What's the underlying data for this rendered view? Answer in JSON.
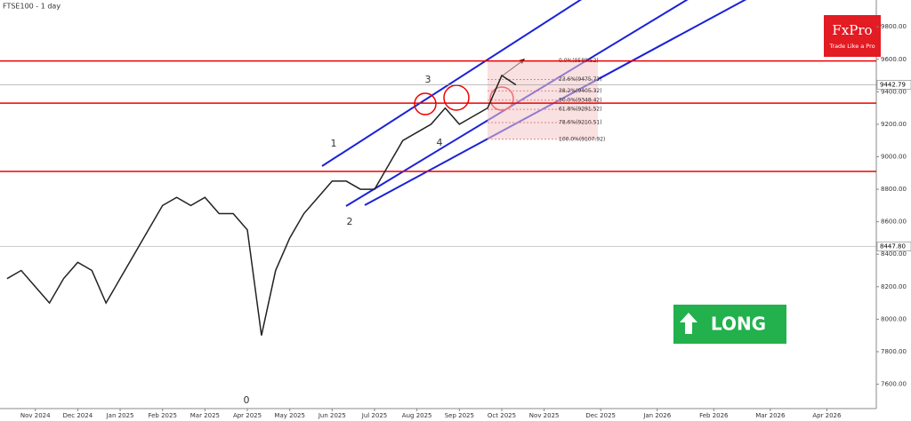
{
  "chart_data": {
    "type": "line",
    "title": "FTSE100 - 1 day",
    "categories": [
      null,
      null,
      "Nov 2024",
      null,
      null,
      "Dec 2024",
      null,
      null,
      "Jan 2025",
      null,
      null,
      "Feb 2025",
      null,
      null,
      "Mar 2025",
      null,
      null,
      "Apr 2025",
      null,
      null,
      "May 2025",
      null,
      null,
      "Jun 2025",
      null,
      null,
      "Jul 2025",
      null,
      null,
      "Aug 2025",
      null,
      null,
      "Sep 2025",
      null,
      null,
      "Oct 2025",
      null,
      null,
      "Nov 2025",
      null,
      null,
      null,
      "Dec 2025",
      null,
      null,
      null,
      "Jan 2026",
      null,
      null,
      null,
      "Feb 2026",
      null,
      null,
      null,
      "Mar 2026",
      null,
      null,
      null,
      "Apr 2026",
      null,
      null,
      null
    ],
    "series": [
      {
        "name": "FTSE100",
        "color": "#222222",
        "values": [
          8250,
          8300,
          8200,
          8100,
          8250,
          8350,
          8300,
          8100,
          8250,
          8400,
          8550,
          8700,
          8750,
          8700,
          8750,
          8650,
          8650,
          8550,
          7900,
          8300,
          8500,
          8650,
          8750,
          8850,
          8850,
          8800,
          8800,
          8950,
          9100,
          9150,
          9200,
          9300,
          9200,
          9250,
          9300,
          9500,
          9442.79,
          null,
          null,
          null,
          null,
          null,
          null,
          null,
          null,
          null,
          null,
          null,
          null,
          null,
          null,
          null,
          null,
          null,
          null,
          null,
          null,
          null,
          null,
          null,
          null,
          null
        ]
      }
    ],
    "ylim": [
      7450,
      9965
    ],
    "yticks": [
      {
        "value": 7600,
        "label": "7600.00"
      },
      {
        "value": 7800,
        "label": "7800.00"
      },
      {
        "value": 8000,
        "label": "8000.00"
      },
      {
        "value": 8200,
        "label": "8200.00"
      },
      {
        "value": 8400,
        "label": "8400.00"
      },
      {
        "value": 8600,
        "label": "8600.00"
      },
      {
        "value": 8800,
        "label": "8800.00"
      },
      {
        "value": 9000,
        "label": "9000.00"
      },
      {
        "value": 9200,
        "label": "9200.00"
      },
      {
        "value": 9400,
        "label": "9400.00"
      },
      {
        "value": 9600,
        "label": "9600.00"
      },
      {
        "value": 9800,
        "label": "9800.00"
      }
    ],
    "grid": false,
    "resistance_lines": [
      9590,
      9330,
      8910
    ],
    "price_marks": [
      {
        "value": 9442.79,
        "label": "9442.79"
      },
      {
        "value": 8447.8,
        "label": "8447.80"
      }
    ],
    "fib_levels": [
      {
        "value": 9589.52,
        "label": "0.0%(9589.52)"
      },
      {
        "value": 9475.72,
        "label": "23.6%(9475.72)"
      },
      {
        "value": 9405.32,
        "label": "38.2%(9405.32)"
      },
      {
        "value": 9348.42,
        "label": "50.0%(9348.42)"
      },
      {
        "value": 9291.52,
        "label": "61.8%(9291.52)"
      },
      {
        "value": 9210.51,
        "label": "78.6%(9210.51)"
      },
      {
        "value": 9107.92,
        "label": "100.0%(9107.92)"
      }
    ],
    "wave_labels": [
      "0",
      "1",
      "2",
      "3",
      "4"
    ],
    "signal": "LONG",
    "brand": "FxPro",
    "tagline": "Trade Like a Pro"
  }
}
